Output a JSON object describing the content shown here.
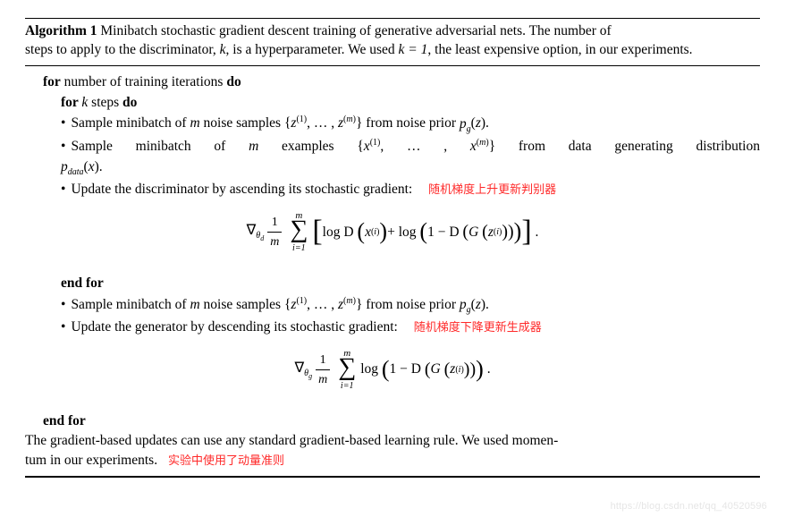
{
  "header": {
    "algo_label": "Algorithm 1",
    "caption_a": "Minibatch stochastic gradient descent training of generative adversarial nets.  The number of",
    "caption_b": "steps to apply to the discriminator, ",
    "k": "k",
    "caption_c": ", is a hyperparameter. We used ",
    "k_eq": "k = 1",
    "caption_d": ", the least expensive option, in our experiments."
  },
  "body": {
    "for_outer_a": "for",
    "for_outer_b": " number of training iterations ",
    "do": "do",
    "for_inner_a": "for ",
    "for_inner_k": "k",
    "for_inner_b": " steps ",
    "bullet1_a": "Sample minibatch of ",
    "m": "m",
    "bullet1_b": " noise samples ",
    "z_set": "{z(1), … , z(m)}",
    "bullet1_c": " from noise prior ",
    "pg_z": "p_g(z)",
    "bullet2_a": "Sample minibatch of ",
    "bullet2_b": " examples ",
    "x_set": "{x(1), … , x(m)}",
    "bullet2_c": " from data generating distribution",
    "pdata_x": "p_data(x)",
    "bullet3": "Update the discriminator by ascending its stochastic gradient:",
    "note1": "随机梯度上升更新判别器",
    "end_for": "end for",
    "bullet4_a": "Sample minibatch of ",
    "bullet4_b": " noise samples ",
    "bullet4_c": " from noise prior ",
    "bullet5": "Update the generator by descending its stochastic gradient:",
    "note2": "随机梯度下降更新生成器"
  },
  "formula": {
    "grad_d": "∇θd",
    "grad_g": "∇θg",
    "one_over_m_top": "1",
    "one_over_m_bot": "m",
    "sum_top": "m",
    "sum_bot": "i=1",
    "logD": "log D",
    "x_i": "x(i)",
    "plus_log": " + log",
    "one_minus_D": "1 − D",
    "G": "G",
    "z_i": "z(i)",
    "log": "log",
    "period": "."
  },
  "footer": {
    "line1": "The gradient-based updates can use any standard gradient-based learning rule.  We used momen-",
    "line2": "tum in our experiments.",
    "note3": "实验中使用了动量准则"
  },
  "style": {
    "text_color": "#000000",
    "note_color": "#ff2a2a",
    "bg": "#ffffff",
    "font_main": "Times New Roman",
    "font_note": "SimSun",
    "fontsize_main": 15.5,
    "fontsize_note": 13,
    "fontsize_formula": 16,
    "watermark_color": "#e6e6e6"
  },
  "watermark": "https://blog.csdn.net/qq_40520596"
}
